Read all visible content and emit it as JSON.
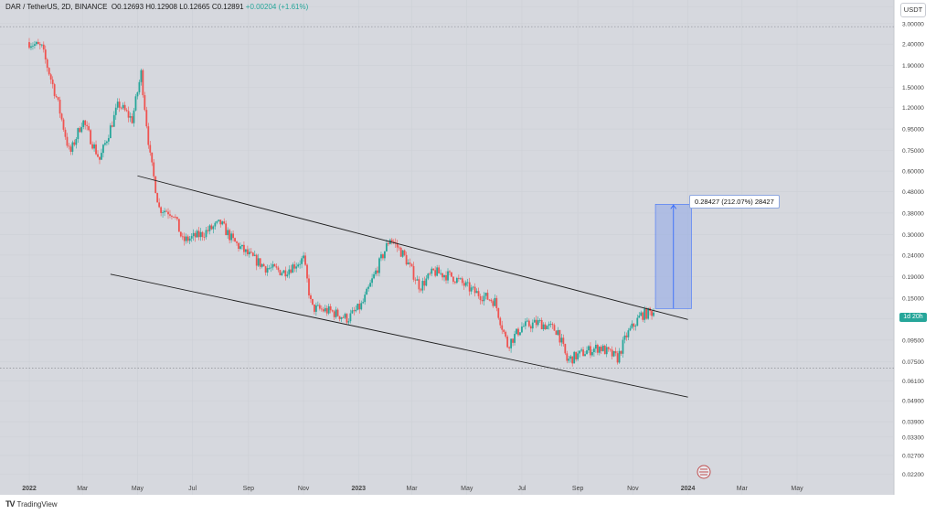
{
  "header": {
    "symbol": "DAR / TetherUS, 2D, BINANCE",
    "open": "O0.12693",
    "high": "H0.12908",
    "low": "L0.12665",
    "close": "C0.12891",
    "change": "+0.00204 (+1.61%)"
  },
  "currency_button": "USDT",
  "price_tag": "1d 20h",
  "measure_label": "0.28427 (212.07%) 28427",
  "logo_text": "TradingView",
  "colors": {
    "background": "#d6d8de",
    "up": "#26a69a",
    "down": "#ef5350",
    "channel": "#1f1f1f",
    "measure_fill": "#8fa8e8",
    "measure_line": "#2962ff"
  },
  "chart_data": {
    "type": "candlestick",
    "title": "",
    "y_scale": "log",
    "y_ticks": [
      "3.60000",
      "3.00000",
      "2.40000",
      "1.90000",
      "1.50000",
      "1.20000",
      "0.95000",
      "0.75000",
      "0.60000",
      "0.48000",
      "0.38000",
      "0.30000",
      "0.24000",
      "0.19000",
      "0.15000",
      "0.12000",
      "0.09500",
      "0.07500",
      "0.06100",
      "0.04900",
      "0.03900",
      "0.03300",
      "0.02700",
      "0.02200"
    ],
    "x_ticks": [
      "2022",
      "Mar",
      "May",
      "Jul",
      "Sep",
      "Nov",
      "2023",
      "Mar",
      "May",
      "Jul",
      "Sep",
      "Nov",
      "2024",
      "Mar",
      "May"
    ],
    "close_path": [
      {
        "date": "2022-01-01",
        "close": 2.45
      },
      {
        "date": "2022-01-15",
        "close": 2.3
      },
      {
        "date": "2022-02-01",
        "close": 1.3
      },
      {
        "date": "2022-02-15",
        "close": 0.72
      },
      {
        "date": "2022-03-01",
        "close": 1.05
      },
      {
        "date": "2022-03-20",
        "close": 0.68
      },
      {
        "date": "2022-04-10",
        "close": 1.25
      },
      {
        "date": "2022-04-25",
        "close": 1.05
      },
      {
        "date": "2022-05-05",
        "close": 1.75
      },
      {
        "date": "2022-05-15",
        "close": 0.7
      },
      {
        "date": "2022-05-25",
        "close": 0.4
      },
      {
        "date": "2022-06-10",
        "close": 0.38
      },
      {
        "date": "2022-06-20",
        "close": 0.28
      },
      {
        "date": "2022-07-10",
        "close": 0.3
      },
      {
        "date": "2022-08-01",
        "close": 0.34
      },
      {
        "date": "2022-08-15",
        "close": 0.28
      },
      {
        "date": "2022-09-01",
        "close": 0.24
      },
      {
        "date": "2022-09-20",
        "close": 0.21
      },
      {
        "date": "2022-10-10",
        "close": 0.2
      },
      {
        "date": "2022-11-01",
        "close": 0.23
      },
      {
        "date": "2022-11-10",
        "close": 0.135
      },
      {
        "date": "2022-12-01",
        "close": 0.13
      },
      {
        "date": "2022-12-20",
        "close": 0.12
      },
      {
        "date": "2023-01-05",
        "close": 0.14
      },
      {
        "date": "2023-01-20",
        "close": 0.2
      },
      {
        "date": "2023-02-05",
        "close": 0.29
      },
      {
        "date": "2023-02-20",
        "close": 0.24
      },
      {
        "date": "2023-03-10",
        "close": 0.17
      },
      {
        "date": "2023-03-25",
        "close": 0.2
      },
      {
        "date": "2023-04-15",
        "close": 0.19
      },
      {
        "date": "2023-05-10",
        "close": 0.16
      },
      {
        "date": "2023-06-01",
        "close": 0.145
      },
      {
        "date": "2023-06-15",
        "close": 0.09
      },
      {
        "date": "2023-07-01",
        "close": 0.11
      },
      {
        "date": "2023-07-20",
        "close": 0.115
      },
      {
        "date": "2023-08-10",
        "close": 0.105
      },
      {
        "date": "2023-08-20",
        "close": 0.076
      },
      {
        "date": "2023-09-10",
        "close": 0.084
      },
      {
        "date": "2023-09-25",
        "close": 0.088
      },
      {
        "date": "2023-10-15",
        "close": 0.078
      },
      {
        "date": "2023-10-25",
        "close": 0.1
      },
      {
        "date": "2023-11-10",
        "close": 0.125
      },
      {
        "date": "2023-11-25",
        "close": 0.13
      }
    ],
    "channel_lines": [
      {
        "start": {
          "date": "2022-05-01",
          "price": 0.57
        },
        "end": {
          "date": "2024-01-01",
          "price": 0.119
        }
      },
      {
        "start": {
          "date": "2022-04-01",
          "price": 0.195
        },
        "end": {
          "date": "2024-01-01",
          "price": 0.051
        }
      }
    ],
    "measure": {
      "from_price": 0.134,
      "to_price": 0.418,
      "change": "0.28427 (212.07%) 28427",
      "start_date": "2023-11-26",
      "end_date": "2024-01-05"
    },
    "dotted_levels": [
      2.9,
      0.07
    ]
  }
}
